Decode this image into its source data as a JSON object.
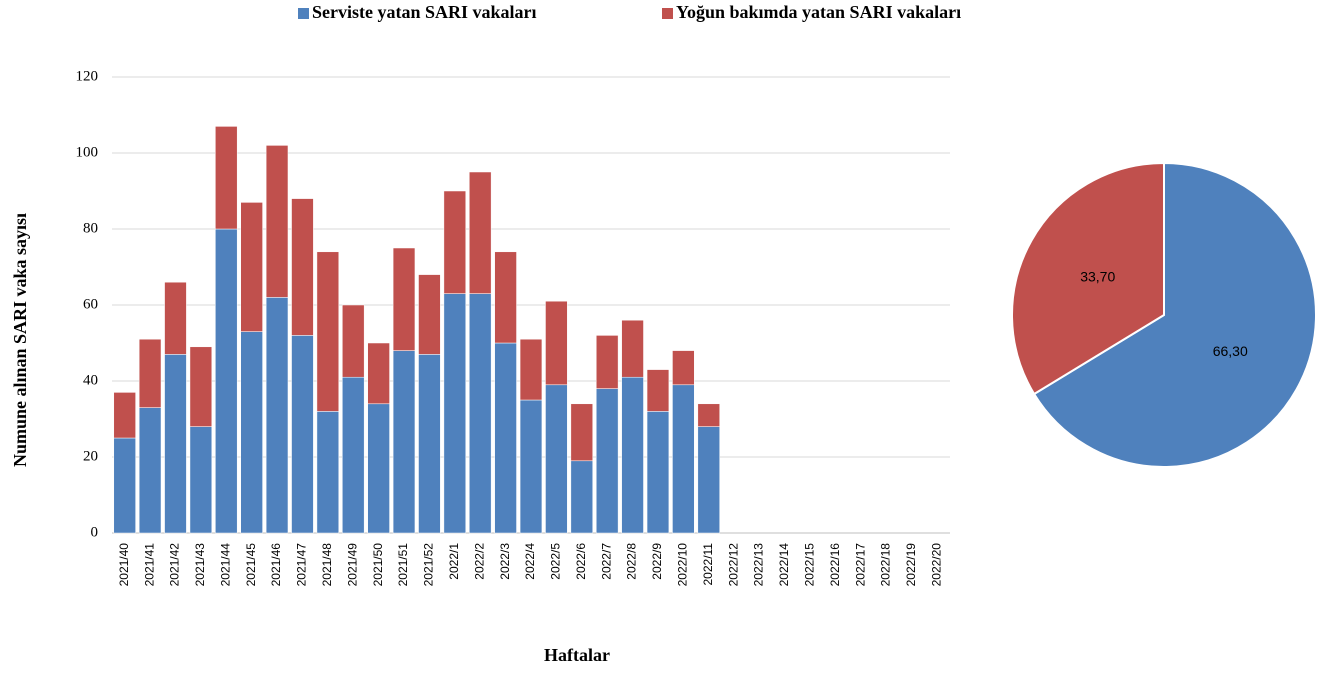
{
  "chart_data": [
    {
      "type": "bar",
      "stacked": true,
      "x_label": "Haftalar",
      "y_label": "Numune alınan SARI vaka sayısı",
      "categories": [
        "2021/40",
        "2021/41",
        "2021/42",
        "2021/43",
        "2021/44",
        "2021/45",
        "2021/46",
        "2021/47",
        "2021/48",
        "2021/49",
        "2021/50",
        "2021/51",
        "2021/52",
        "2022/1",
        "2022/2",
        "2022/3",
        "2022/4",
        "2022/5",
        "2022/6",
        "2022/7",
        "2022/8",
        "2022/9",
        "2022/10",
        "2022/11",
        "2022/12",
        "2022/13",
        "2022/14",
        "2022/15",
        "2022/16",
        "2022/17",
        "2022/18",
        "2022/19",
        "2022/20"
      ],
      "series": [
        {
          "name": "Serviste yatan SARI vakaları",
          "color": "#4f81bd",
          "values": [
            25,
            33,
            47,
            28,
            80,
            53,
            62,
            52,
            32,
            41,
            34,
            48,
            47,
            63,
            63,
            50,
            35,
            39,
            19,
            38,
            41,
            32,
            39,
            28,
            null,
            null,
            null,
            null,
            null,
            null,
            null,
            null,
            null
          ]
        },
        {
          "name": "Yoğun bakımda yatan SARI vakaları",
          "color": "#c0504d",
          "values": [
            12,
            18,
            19,
            21,
            27,
            34,
            40,
            36,
            42,
            19,
            16,
            27,
            21,
            27,
            32,
            24,
            16,
            22,
            15,
            14,
            15,
            11,
            9,
            6,
            null,
            null,
            null,
            null,
            null,
            null,
            null,
            null,
            null
          ]
        }
      ],
      "ylim": [
        0,
        120
      ],
      "yticks": [
        0,
        20,
        40,
        60,
        80,
        100,
        120
      ],
      "grid": true,
      "legend": "top"
    },
    {
      "type": "pie",
      "values": [
        66.3,
        33.7
      ],
      "value_labels": [
        "66,30",
        "33,70"
      ],
      "colors": [
        "#4f81bd",
        "#c0504d"
      ]
    }
  ]
}
